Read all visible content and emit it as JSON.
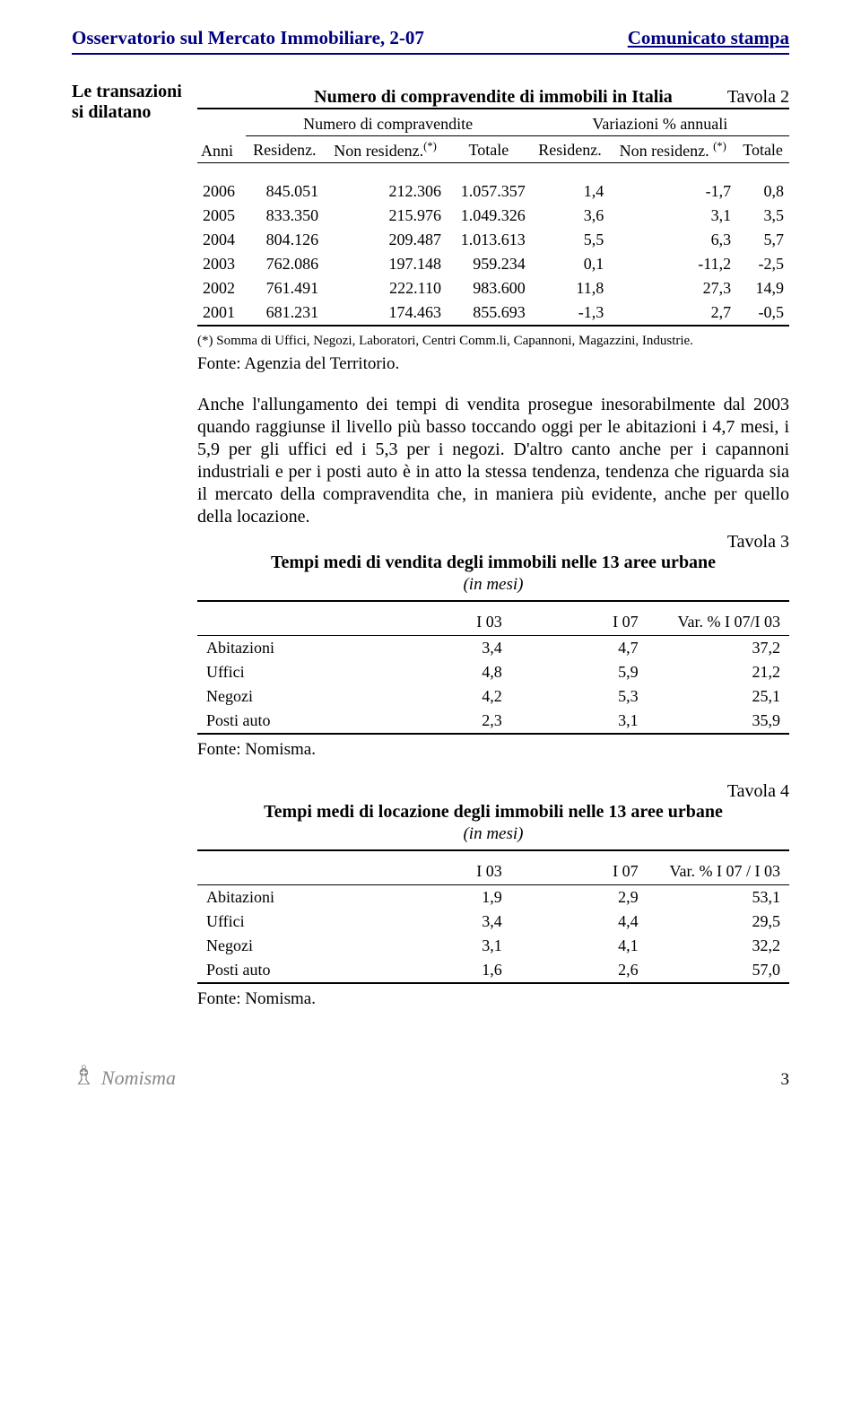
{
  "header": {
    "left": "Osservatorio sul Mercato Immobiliare, 2-07",
    "right": "Comunicato stampa"
  },
  "sidenote": "Le transazioni si dilatano",
  "table2_title": "Numero di compravendite di immobili in Italia",
  "table2_right": "Tavola 2",
  "t1": {
    "group1": "Numero di compravendite",
    "group2": "Variazioni % annuali",
    "h_anni": "Anni",
    "h_res": "Residenz.",
    "h_nonres": "Non residenz.",
    "h_sup": "(*)",
    "h_tot": "Totale",
    "rows": [
      {
        "y": "2006",
        "r": "845.051",
        "nr": "212.306",
        "t": "1.057.357",
        "vr": "1,4",
        "vnr": "-1,7",
        "vt": "0,8"
      },
      {
        "y": "2005",
        "r": "833.350",
        "nr": "215.976",
        "t": "1.049.326",
        "vr": "3,6",
        "vnr": "3,1",
        "vt": "3,5"
      },
      {
        "y": "2004",
        "r": "804.126",
        "nr": "209.487",
        "t": "1.013.613",
        "vr": "5,5",
        "vnr": "6,3",
        "vt": "5,7"
      },
      {
        "y": "2003",
        "r": "762.086",
        "nr": "197.148",
        "t": "959.234",
        "vr": "0,1",
        "vnr": "-11,2",
        "vt": "-2,5"
      },
      {
        "y": "2002",
        "r": "761.491",
        "nr": "222.110",
        "t": "983.600",
        "vr": "11,8",
        "vnr": "27,3",
        "vt": "14,9"
      },
      {
        "y": "2001",
        "r": "681.231",
        "nr": "174.463",
        "t": "855.693",
        "vr": "-1,3",
        "vnr": "2,7",
        "vt": "-0,5"
      }
    ]
  },
  "footnote": "(*) Somma di Uffici, Negozi, Laboratori, Centri Comm.li, Capannoni, Magazzini, Industrie.",
  "source1": "Fonte: Agenzia del Territorio.",
  "para": "Anche l'allungamento dei tempi di vendita prosegue inesorabilmente dal 2003 quando raggiunse il livello più basso toccando oggi per le abitazioni i 4,7 mesi, i 5,9 per gli uffici ed i 5,3 per i negozi. D'altro canto anche per i capannoni industriali e per i posti auto è in atto la stessa tendenza, tendenza che riguarda sia il mercato della compravendita che, in maniera più evidente, anche per quello della locazione.",
  "table3_right": "Tavola 3",
  "table3_title": "Tempi medi di vendita degli immobili nelle 13 aree urbane",
  "table3_sub": "(in mesi)",
  "t3": {
    "h1": "I 03",
    "h2": "I 07",
    "h3": "Var. % I 07/I 03",
    "rows": [
      {
        "l": "Abitazioni",
        "a": "3,4",
        "b": "4,7",
        "c": "37,2"
      },
      {
        "l": "Uffici",
        "a": "4,8",
        "b": "5,9",
        "c": "21,2"
      },
      {
        "l": "Negozi",
        "a": "4,2",
        "b": "5,3",
        "c": "25,1"
      },
      {
        "l": "Posti auto",
        "a": "2,3",
        "b": "3,1",
        "c": "35,9"
      }
    ]
  },
  "source2": "Fonte: Nomisma.",
  "table4_right": "Tavola 4",
  "table4_title": "Tempi medi di locazione degli immobili nelle 13 aree urbane",
  "table4_sub": "(in mesi)",
  "t4": {
    "h1": "I 03",
    "h2": "I 07",
    "h3": "Var. % I 07 / I 03",
    "rows": [
      {
        "l": "Abitazioni",
        "a": "1,9",
        "b": "2,9",
        "c": "53,1"
      },
      {
        "l": "Uffici",
        "a": "3,4",
        "b": "4,4",
        "c": "29,5"
      },
      {
        "l": "Negozi",
        "a": "3,1",
        "b": "4,1",
        "c": "32,2"
      },
      {
        "l": "Posti auto",
        "a": "1,6",
        "b": "2,6",
        "c": "57,0"
      }
    ]
  },
  "source3": "Fonte: Nomisma.",
  "logo_text": "Nomisma",
  "page_num": "3"
}
